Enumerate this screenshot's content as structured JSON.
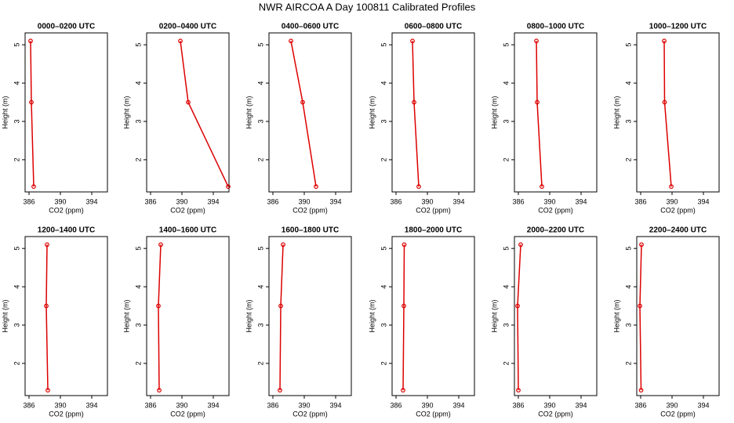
{
  "title": "NWR AIRCOA A  Day 100811  Calibrated Profiles",
  "chart_data": [
    {
      "type": "line",
      "title": "0000–0200 UTC",
      "xlabel": "CO2 (ppm)",
      "ylabel": "Height (m)",
      "color": "#dd0000",
      "xlim": [
        385.5,
        396
      ],
      "ylim": [
        1.16,
        5.31
      ],
      "xticks": [
        386,
        390,
        394
      ],
      "yticks": [
        2,
        3,
        4,
        5
      ],
      "x": [
        386.2,
        386.3,
        386.6
      ],
      "values": [
        5.1,
        3.5,
        1.3
      ]
    },
    {
      "type": "line",
      "title": "0200–0400 UTC",
      "xlabel": "CO2 (ppm)",
      "ylabel": "Height (m)",
      "color": "#dd0000",
      "xlim": [
        385.5,
        396
      ],
      "ylim": [
        1.16,
        5.31
      ],
      "xticks": [
        386,
        390,
        394
      ],
      "yticks": [
        2,
        3,
        4,
        5
      ],
      "x": [
        389.8,
        390.8,
        395.9
      ],
      "values": [
        5.1,
        3.5,
        1.3
      ]
    },
    {
      "type": "line",
      "title": "0400–0600 UTC",
      "xlabel": "CO2 (ppm)",
      "ylabel": "Height (m)",
      "color": "#dd0000",
      "xlim": [
        385.5,
        396
      ],
      "ylim": [
        1.16,
        5.31
      ],
      "xticks": [
        386,
        390,
        394
      ],
      "yticks": [
        2,
        3,
        4,
        5
      ],
      "x": [
        388.3,
        389.8,
        391.5
      ],
      "values": [
        5.1,
        3.5,
        1.3
      ]
    },
    {
      "type": "line",
      "title": "0600–0800 UTC",
      "xlabel": "CO2 (ppm)",
      "ylabel": "Height (m)",
      "color": "#dd0000",
      "xlim": [
        385.5,
        396
      ],
      "ylim": [
        1.16,
        5.31
      ],
      "xticks": [
        386,
        390,
        394
      ],
      "yticks": [
        2,
        3,
        4,
        5
      ],
      "x": [
        388.1,
        388.3,
        388.9
      ],
      "values": [
        5.1,
        3.5,
        1.3
      ]
    },
    {
      "type": "line",
      "title": "0800–1000 UTC",
      "xlabel": "CO2 (ppm)",
      "ylabel": "Height (m)",
      "color": "#dd0000",
      "xlim": [
        385.5,
        396
      ],
      "ylim": [
        1.16,
        5.31
      ],
      "xticks": [
        386,
        390,
        394
      ],
      "yticks": [
        2,
        3,
        4,
        5
      ],
      "x": [
        388.3,
        388.4,
        389.0
      ],
      "values": [
        5.1,
        3.5,
        1.3
      ]
    },
    {
      "type": "line",
      "title": "1000–1200 UTC",
      "xlabel": "CO2 (ppm)",
      "ylabel": "Height (m)",
      "color": "#dd0000",
      "xlim": [
        385.5,
        396
      ],
      "ylim": [
        1.16,
        5.31
      ],
      "xticks": [
        386,
        390,
        394
      ],
      "yticks": [
        2,
        3,
        4,
        5
      ],
      "x": [
        389.0,
        389.05,
        389.9
      ],
      "values": [
        5.1,
        3.5,
        1.3
      ]
    },
    {
      "type": "line",
      "title": "1200–1400 UTC",
      "xlabel": "CO2 (ppm)",
      "ylabel": "Height (m)",
      "color": "#dd0000",
      "xlim": [
        385.5,
        396
      ],
      "ylim": [
        1.16,
        5.31
      ],
      "xticks": [
        386,
        390,
        394
      ],
      "yticks": [
        2,
        3,
        4,
        5
      ],
      "x": [
        388.3,
        388.2,
        388.4
      ],
      "values": [
        5.1,
        3.5,
        1.3
      ]
    },
    {
      "type": "line",
      "title": "1400–1600 UTC",
      "xlabel": "CO2 (ppm)",
      "ylabel": "Height (m)",
      "color": "#dd0000",
      "xlim": [
        385.5,
        396
      ],
      "ylim": [
        1.16,
        5.31
      ],
      "xticks": [
        386,
        390,
        394
      ],
      "yticks": [
        2,
        3,
        4,
        5
      ],
      "x": [
        387.3,
        387.0,
        387.1
      ],
      "values": [
        5.1,
        3.5,
        1.3
      ]
    },
    {
      "type": "line",
      "title": "1600–1800 UTC",
      "xlabel": "CO2 (ppm)",
      "ylabel": "Height (m)",
      "color": "#dd0000",
      "xlim": [
        385.5,
        396
      ],
      "ylim": [
        1.16,
        5.31
      ],
      "xticks": [
        386,
        390,
        394
      ],
      "yticks": [
        2,
        3,
        4,
        5
      ],
      "x": [
        387.3,
        387.0,
        386.9
      ],
      "values": [
        5.1,
        3.5,
        1.3
      ]
    },
    {
      "type": "line",
      "title": "1800–2000 UTC",
      "xlabel": "CO2 (ppm)",
      "ylabel": "Height (m)",
      "color": "#dd0000",
      "xlim": [
        385.5,
        396
      ],
      "ylim": [
        1.16,
        5.31
      ],
      "xticks": [
        386,
        390,
        394
      ],
      "yticks": [
        2,
        3,
        4,
        5
      ],
      "x": [
        387.05,
        387.0,
        386.9
      ],
      "values": [
        5.1,
        3.5,
        1.3
      ]
    },
    {
      "type": "line",
      "title": "2000–2200 UTC",
      "xlabel": "CO2 (ppm)",
      "ylabel": "Height (m)",
      "color": "#dd0000",
      "xlim": [
        385.5,
        396
      ],
      "ylim": [
        1.16,
        5.31
      ],
      "xticks": [
        386,
        390,
        394
      ],
      "yticks": [
        2,
        3,
        4,
        5
      ],
      "x": [
        386.3,
        385.9,
        386.0
      ],
      "values": [
        5.1,
        3.5,
        1.3
      ]
    },
    {
      "type": "line",
      "title": "2200–2400 UTC",
      "xlabel": "CO2 (ppm)",
      "ylabel": "Height (m)",
      "color": "#dd0000",
      "xlim": [
        385.5,
        396
      ],
      "ylim": [
        1.16,
        5.31
      ],
      "xticks": [
        386,
        390,
        394
      ],
      "yticks": [
        2,
        3,
        4,
        5
      ],
      "x": [
        386.1,
        385.9,
        386.05
      ],
      "values": [
        5.1,
        3.5,
        1.3
      ]
    }
  ]
}
